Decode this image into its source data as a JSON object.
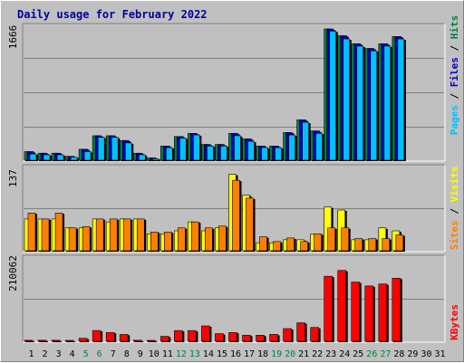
{
  "chart_data": {
    "type": "bar",
    "title": "Daily usage for February 2022",
    "x": [
      "1",
      "2",
      "3",
      "4",
      "5",
      "6",
      "7",
      "8",
      "9",
      "10",
      "11",
      "12",
      "13",
      "14",
      "15",
      "16",
      "17",
      "18",
      "19",
      "20",
      "21",
      "22",
      "23",
      "24",
      "25",
      "26",
      "27",
      "28",
      "29",
      "30",
      "31"
    ],
    "weekend_days": [
      5,
      6,
      12,
      13,
      19,
      20,
      26,
      27
    ],
    "panels": [
      {
        "id": "pages",
        "ylabel_max": "1666",
        "ymax": 1666,
        "series": [
          {
            "name": "Hits",
            "color": "#008040",
            "values": [
              120,
              100,
              100,
              60,
              150,
              320,
              320,
              260,
              100,
              40,
              190,
              310,
              350,
              210,
              210,
              350,
              280,
              190,
              190,
              360,
              520,
              380,
              1666,
              1580,
              1480,
              1420,
              1480,
              1570,
              0,
              0,
              0
            ]
          },
          {
            "name": "Files",
            "color": "#0000c0",
            "values": [
              120,
              100,
              100,
              60,
              150,
              320,
              320,
              260,
              100,
              40,
              190,
              310,
              350,
              210,
              210,
              350,
              280,
              190,
              190,
              360,
              520,
              380,
              1666,
              1580,
              1480,
              1420,
              1480,
              1570,
              0,
              0,
              0
            ]
          },
          {
            "name": "Pages",
            "color": "#00c0ff",
            "values": [
              90,
              80,
              80,
              50,
              120,
              300,
              300,
              230,
              80,
              30,
              170,
              290,
              330,
              190,
              190,
              320,
              250,
              170,
              170,
              330,
              490,
              350,
              1640,
              1540,
              1450,
              1390,
              1450,
              1540,
              0,
              0,
              0
            ]
          }
        ]
      },
      {
        "id": "visits",
        "ylabel_max": "137",
        "ymax": 137,
        "series": [
          {
            "name": "Visits",
            "color": "#ffff00",
            "values": [
              55,
              55,
              55,
              40,
              40,
              55,
              50,
              55,
              55,
              30,
              30,
              35,
              50,
              35,
              40,
              130,
              95,
              15,
              15,
              20,
              20,
              30,
              75,
              70,
              20,
              20,
              40,
              35,
              0,
              0,
              0
            ]
          },
          {
            "name": "Sites",
            "color": "#ff8000",
            "values": [
              65,
              55,
              65,
              40,
              42,
              55,
              55,
              55,
              55,
              33,
              33,
              40,
              50,
              40,
              43,
              120,
              90,
              25,
              17,
              23,
              17,
              30,
              40,
              40,
              22,
              22,
              22,
              28,
              0,
              0,
              0
            ]
          }
        ]
      },
      {
        "id": "kbytes",
        "ylabel_max": "210062",
        "ymax": 210062,
        "series": [
          {
            "name": "KBytes",
            "color": "#ff0000",
            "values": [
              5000,
              5000,
              5000,
              3000,
              10000,
              30000,
              25000,
              20000,
              5000,
              3000,
              15000,
              30000,
              30000,
              42000,
              22000,
              25000,
              18000,
              18000,
              20000,
              35000,
              50000,
              38000,
              170000,
              185000,
              155000,
              145000,
              150000,
              165000,
              0,
              0,
              0
            ]
          }
        ]
      }
    ],
    "right_label_top": [
      "Pages",
      "Files",
      "Hits"
    ],
    "right_label_mid": [
      "Sites",
      "Visits"
    ],
    "right_label_bottom": [
      "KBytes"
    ],
    "grid": true
  }
}
